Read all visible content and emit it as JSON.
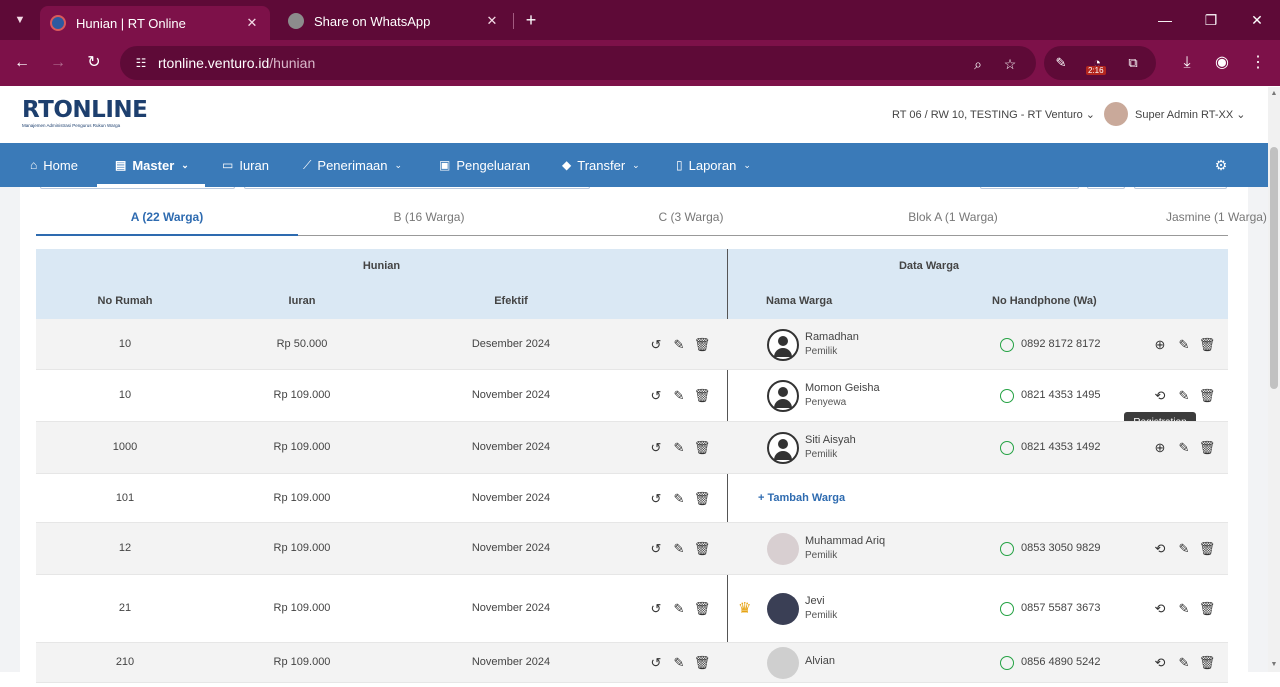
{
  "browser": {
    "tabs": [
      {
        "title": "Hunian | RT Online",
        "close": "✕"
      },
      {
        "title": "Share on WhatsApp",
        "close": "✕"
      }
    ],
    "new_tab": "+",
    "url_host": "rtonline.venturo.id",
    "url_path": "/hunian",
    "extension_badge": "2:16"
  },
  "app": {
    "logo": "RTONLINE",
    "logo_tagline": "Manajemen Administrasi Pengurus Rukun Warga",
    "rt_selector": "RT 06 / RW 10, TESTING - RT Venturo",
    "user": "Super Admin RT-XX",
    "nav": [
      {
        "label": "Home"
      },
      {
        "label": "Master"
      },
      {
        "label": "Iuran"
      },
      {
        "label": "Penerimaan"
      },
      {
        "label": "Pengeluaran"
      },
      {
        "label": "Transfer"
      },
      {
        "label": "Laporan"
      }
    ]
  },
  "filters": [
    "A (22 Warga)",
    "B (16 Warga)",
    "C (3 Warga)",
    "Blok A (1 Warga)",
    "Jasmine (1 Warga)"
  ],
  "table": {
    "group_hunian": "Hunian",
    "group_warga": "Data Warga",
    "columns": [
      "No Rumah",
      "Iuran",
      "Efektif",
      "Nama Warga",
      "No Handphone (Wa)"
    ],
    "rows": [
      {
        "no": "10",
        "iuran": "Rp 50.000",
        "efektif": "Desember 2024",
        "nama": "Ramadhan",
        "status": "Pemilik",
        "hp": "0892 8172 8172"
      },
      {
        "no": "10",
        "iuran": "Rp 109.000",
        "efektif": "November 2024",
        "nama": "Momon Geisha",
        "status": "Penyewa",
        "hp": "0821 4353 1495"
      },
      {
        "no": "1000",
        "iuran": "Rp 109.000",
        "efektif": "November 2024",
        "nama": "Siti Aisyah",
        "status": "Pemilik",
        "hp": "0821 4353 1492"
      },
      {
        "no": "101",
        "iuran": "Rp 109.000",
        "efektif": "November 2024",
        "add_label": "+ Tambah Warga"
      },
      {
        "no": "12",
        "iuran": "Rp 109.000",
        "efektif": "November 2024",
        "nama": "Muhammad Ariq",
        "status": "Pemilik",
        "hp": "0853 3050 9829"
      },
      {
        "no": "21",
        "iuran": "Rp 109.000",
        "efektif": "November 2024",
        "nama": "Jevi",
        "status": "Pemilik",
        "hp": "0857 5587 3673"
      },
      {
        "no": "210",
        "iuran": "Rp 109.000",
        "efektif": "November 2024",
        "nama": "Alvian",
        "status": "",
        "hp": "0856 4890 5242"
      }
    ]
  },
  "tooltip": "Registration"
}
